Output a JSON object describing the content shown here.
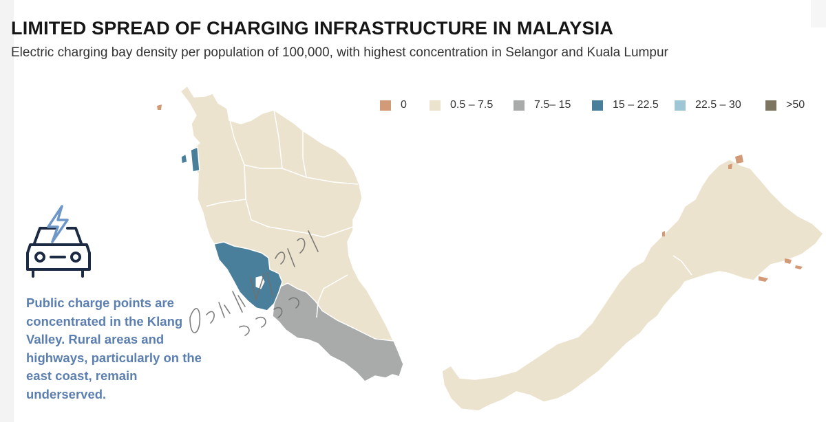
{
  "header": {
    "title": "LIMITED SPREAD OF CHARGING INFRASTRUCTURE IN MALAYSIA",
    "subtitle": "Electric charging bay density per population of 100,000, with highest concentration in Selangor and Kuala Lumpur"
  },
  "legend": [
    {
      "label": "0",
      "color": "#d39a78"
    },
    {
      "label": "0.5 – 7.5",
      "color": "#ece3cf"
    },
    {
      "label": "7.5– 15",
      "color": "#a9abab"
    },
    {
      "label": "15 – 22.5",
      "color": "#4a7f9b"
    },
    {
      "label": "22.5 – 30",
      "color": "#9fc6d4"
    },
    {
      "label": ">50",
      "color": "#7d7560"
    }
  ],
  "note": {
    "icon": "ev-charging-car-icon",
    "text": "Public charge points are concentrated in the Klang Valley. Rural areas and highways, particularly on the east coast, remain underserved."
  },
  "watermark": {
    "line1": "Don't blur it Please",
    "line2": "source: theEdge"
  },
  "regions": [
    {
      "name": "Perlis",
      "range": "0.5 – 7.5"
    },
    {
      "name": "Kedah",
      "range": "0.5 – 7.5"
    },
    {
      "name": "Penang",
      "range": "15 – 22.5"
    },
    {
      "name": "Perak",
      "range": "0.5 – 7.5"
    },
    {
      "name": "Kelantan",
      "range": "0.5 – 7.5"
    },
    {
      "name": "Terengganu",
      "range": "0.5 – 7.5"
    },
    {
      "name": "Pahang",
      "range": "0.5 – 7.5"
    },
    {
      "name": "Selangor",
      "range": "15 – 22.5"
    },
    {
      "name": "Kuala Lumpur",
      "range": "15 – 22.5"
    },
    {
      "name": "Negeri Sembilan",
      "range": "7.5– 15"
    },
    {
      "name": "Melaka",
      "range": "7.5– 15"
    },
    {
      "name": "Johor",
      "range": "7.5– 15"
    },
    {
      "name": "Sarawak",
      "range": "0.5 – 7.5"
    },
    {
      "name": "Sabah",
      "range": "0.5 – 7.5"
    },
    {
      "name": "Labuan & islands",
      "range": "0"
    }
  ]
}
